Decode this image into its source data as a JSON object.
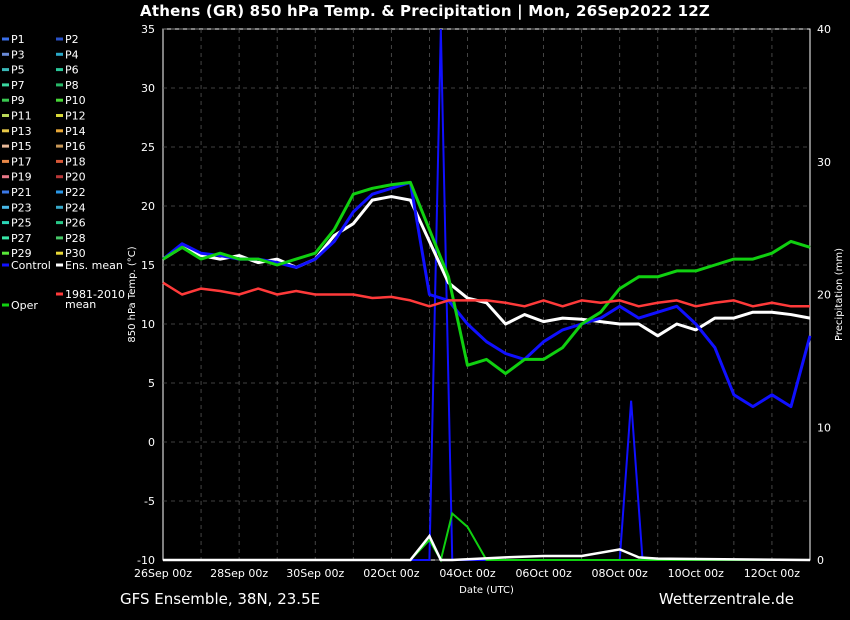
{
  "chart_data": {
    "type": "line",
    "title": "Athens  (GR)  850 hPa Temp. & Precipitation | Mon, 26Sep2022 12Z",
    "xlabel": "Date (UTC)",
    "ylabel": "850 hPa Temp. (°C)",
    "y2label": "Precipitation (mm)",
    "x_ticks": [
      "26Sep 00z",
      "28Sep 00z",
      "30Sep 00z",
      "02Oct 00z",
      "04Oct 00z",
      "06Oct 00z",
      "08Oct 00z",
      "10Oct 00z",
      "12Oct 00z"
    ],
    "xlim_days": [
      0,
      17
    ],
    "ylim": [
      -10,
      35
    ],
    "y_ticks": [
      -10,
      -5,
      0,
      5,
      10,
      15,
      20,
      25,
      30,
      35
    ],
    "y2lim": [
      0,
      40
    ],
    "y2_ticks": [
      0,
      10,
      20,
      30,
      40
    ],
    "grid": true,
    "legend_placement": "left-outside",
    "legend": [
      {
        "name": "P1",
        "color": "#3a6ee8"
      },
      {
        "name": "P2",
        "color": "#2a52c8"
      },
      {
        "name": "P3",
        "color": "#6a8ad8"
      },
      {
        "name": "P4",
        "color": "#2aa8c8"
      },
      {
        "name": "P5",
        "color": "#3ab8b8"
      },
      {
        "name": "P6",
        "color": "#2ac89a"
      },
      {
        "name": "P7",
        "color": "#3ad8a0"
      },
      {
        "name": "P8",
        "color": "#28b868"
      },
      {
        "name": "P9",
        "color": "#3ac850"
      },
      {
        "name": "P10",
        "color": "#48d838"
      },
      {
        "name": "P11",
        "color": "#b8d858"
      },
      {
        "name": "P12",
        "color": "#d8d838"
      },
      {
        "name": "P13",
        "color": "#e8c848"
      },
      {
        "name": "P14",
        "color": "#e8a838"
      },
      {
        "name": "P15",
        "color": "#e8b898"
      },
      {
        "name": "P16",
        "color": "#c89858"
      },
      {
        "name": "P17",
        "color": "#e88848"
      },
      {
        "name": "P18",
        "color": "#d85838"
      },
      {
        "name": "P19",
        "color": "#e87888"
      },
      {
        "name": "P20",
        "color": "#b83838"
      },
      {
        "name": "P21",
        "color": "#3a78e8"
      },
      {
        "name": "P22",
        "color": "#2a98e8"
      },
      {
        "name": "P23",
        "color": "#48b8e8"
      },
      {
        "name": "P24",
        "color": "#38a8c8"
      },
      {
        "name": "P25",
        "color": "#2ad8b8"
      },
      {
        "name": "P26",
        "color": "#28c888"
      },
      {
        "name": "P27",
        "color": "#38e8a8"
      },
      {
        "name": "P28",
        "color": "#48c868"
      },
      {
        "name": "P29",
        "color": "#58e838"
      },
      {
        "name": "P30",
        "color": "#e8d838"
      },
      {
        "name": "Control",
        "color": "#1010ff"
      },
      {
        "name": "Ens. mean",
        "color": "#ffffff"
      },
      {
        "name": "1981-2010 mean",
        "color": "#ff3a3a"
      },
      {
        "name": "Oper",
        "color": "#10d010"
      }
    ],
    "series": [
      {
        "name": "Ens. mean",
        "color": "#ffffff",
        "x": [
          0,
          0.5,
          1,
          1.5,
          2,
          2.5,
          3,
          3.5,
          4,
          4.5,
          5,
          5.5,
          6,
          6.5,
          7,
          7.5,
          8,
          8.5,
          9,
          9.5,
          10,
          10.5,
          11,
          11.5,
          12,
          12.5,
          13,
          13.5,
          14,
          14.5,
          15,
          15.5,
          16,
          16.5,
          17
        ],
        "y": [
          15.5,
          16.5,
          15.8,
          15.5,
          15.8,
          15.2,
          15.5,
          14.8,
          15.5,
          17.5,
          18.5,
          20.5,
          20.8,
          20.5,
          17,
          13.5,
          12.2,
          11.8,
          10,
          10.8,
          10.2,
          10.5,
          10.4,
          10.2,
          10,
          10,
          9,
          10,
          9.5,
          10.5,
          10.5,
          11,
          11,
          10.8,
          10.5
        ]
      },
      {
        "name": "Control",
        "color": "#1010ff",
        "x": [
          0,
          0.5,
          1,
          1.5,
          2,
          2.5,
          3,
          3.5,
          4,
          4.5,
          5,
          5.5,
          6,
          6.5,
          7,
          7.5,
          8,
          8.5,
          9,
          9.5,
          10,
          10.5,
          11,
          11.5,
          12,
          12.5,
          13,
          13.5,
          14,
          14.5,
          15,
          15.5,
          16,
          16.5,
          17
        ],
        "y": [
          15.5,
          16.8,
          16,
          15.8,
          15.5,
          15.5,
          15.2,
          14.8,
          15.5,
          17,
          19.5,
          21,
          21.5,
          22,
          12.5,
          12,
          10,
          8.5,
          7.5,
          7,
          8.5,
          9.5,
          10,
          10.5,
          11.5,
          10.5,
          11,
          11.5,
          10,
          8,
          4,
          3,
          4,
          3,
          9
        ]
      },
      {
        "name": "Oper",
        "color": "#10d010",
        "x": [
          0,
          0.5,
          1,
          1.5,
          2,
          2.5,
          3,
          3.5,
          4,
          4.5,
          5,
          5.5,
          6,
          6.5,
          7,
          7.5,
          8,
          8.5,
          9,
          9.5,
          10,
          10.5,
          11,
          11.5,
          12,
          12.5,
          13,
          13.5,
          14,
          14.5,
          15,
          15.5,
          16,
          16.5,
          17
        ],
        "y": [
          15.5,
          16.5,
          15.5,
          16,
          15.5,
          15.5,
          15,
          15.5,
          16,
          18,
          21,
          21.5,
          21.8,
          22,
          18,
          14,
          6.5,
          7,
          5.8,
          7,
          7,
          8,
          10,
          11,
          13,
          14,
          14,
          14.5,
          14.5,
          15,
          15.5,
          15.5,
          16,
          17,
          16.5
        ]
      },
      {
        "name": "1981-2010 mean",
        "color": "#ff3a3a",
        "x": [
          0,
          0.5,
          1,
          1.5,
          2,
          2.5,
          3,
          3.5,
          4,
          4.5,
          5,
          5.5,
          6,
          6.5,
          7,
          7.5,
          8,
          8.5,
          9,
          9.5,
          10,
          10.5,
          11,
          11.5,
          12,
          12.5,
          13,
          13.5,
          14,
          14.5,
          15,
          15.5,
          16,
          16.5,
          17
        ],
        "y": [
          13.5,
          12.5,
          13,
          12.8,
          12.5,
          13,
          12.5,
          12.8,
          12.5,
          12.5,
          12.5,
          12.2,
          12.3,
          12,
          11.5,
          12,
          12,
          12,
          11.8,
          11.5,
          12,
          11.5,
          12,
          11.8,
          12,
          11.5,
          11.8,
          12,
          11.5,
          11.8,
          12,
          11.5,
          11.8,
          11.5,
          11.5
        ]
      }
    ],
    "precipitation": {
      "unit": "mm",
      "series": [
        {
          "name": "Control",
          "color": "#1010ff",
          "x": [
            0,
            7,
            7.3,
            7.6,
            8,
            12,
            12.3,
            12.6,
            13,
            17
          ],
          "y": [
            0,
            0,
            40,
            0,
            0,
            0,
            12,
            0,
            0,
            0
          ]
        },
        {
          "name": "Oper",
          "color": "#10d010",
          "x": [
            0,
            6.5,
            7,
            7.3,
            7.6,
            8,
            8.5,
            9,
            17
          ],
          "y": [
            0,
            0,
            1.5,
            0,
            3.5,
            2.5,
            0,
            0,
            0
          ]
        },
        {
          "name": "Ens. mean",
          "color": "#ffffff",
          "x": [
            0,
            6.5,
            7,
            7.3,
            7.6,
            9,
            10,
            11,
            12,
            12.5,
            13,
            17
          ],
          "y": [
            0,
            0,
            1.8,
            0,
            0,
            0.2,
            0.3,
            0.3,
            0.8,
            0.2,
            0.1,
            0
          ]
        }
      ]
    }
  },
  "footer": {
    "left": "GFS Ensemble, 38N, 23.5E",
    "right": "Wetterzentrale.de"
  }
}
